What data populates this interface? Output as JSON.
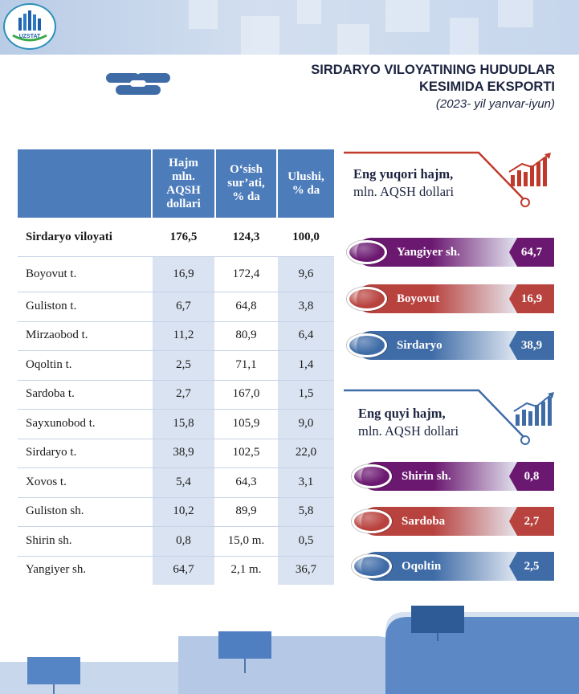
{
  "header": {
    "logo_text": "UZSTAT",
    "title_line1": "SIRDARYO VILOYATINING HUDUDLAR",
    "title_line2": "KESIMIDA EKSPORTI",
    "subtitle": "(2023- yil yanvar-iyun)"
  },
  "table": {
    "columns": [
      "",
      "Hajm mln. AQSH dollari",
      "O‘sish sur’ati, % da",
      "Ulushi, % da"
    ],
    "header_lines": {
      "volume": [
        "Hajm",
        "mln.",
        "AQSH",
        "dollari"
      ],
      "growth": [
        "O‘sish",
        "sur’ati,",
        "% da"
      ],
      "share": [
        "Ulushi,",
        "% da"
      ]
    },
    "total": {
      "name": "Sirdaryo viloyati",
      "volume": "176,5",
      "growth": "124,3",
      "share": "100,0"
    },
    "rows": [
      {
        "name": "Boyovut t.",
        "volume": "16,9",
        "growth": "172,4",
        "share": "9,6"
      },
      {
        "name": "Guliston t.",
        "volume": "6,7",
        "growth": "64,8",
        "share": "3,8"
      },
      {
        "name": "Mirzaobod t.",
        "volume": "11,2",
        "growth": "80,9",
        "share": "6,4"
      },
      {
        "name": "Oqoltin t.",
        "volume": "2,5",
        "growth": "71,1",
        "share": "1,4"
      },
      {
        "name": "Sardoba t.",
        "volume": "2,7",
        "growth": "167,0",
        "share": "1,5"
      },
      {
        "name": "Sayxunobod t.",
        "volume": "15,8",
        "growth": "105,9",
        "share": "9,0"
      },
      {
        "name": "Sirdaryo t.",
        "volume": "38,9",
        "growth": "102,5",
        "share": "22,0"
      },
      {
        "name": "Xovos t.",
        "volume": "5,4",
        "growth": "64,3",
        "share": "3,1"
      },
      {
        "name": "Guliston sh.",
        "volume": "10,2",
        "growth": "89,9",
        "share": "5,8"
      },
      {
        "name": "Shirin sh.",
        "volume": "0,8",
        "growth": "15,0 m.",
        "share": "0,5"
      },
      {
        "name": "Yangiyer sh.",
        "volume": "64,7",
        "growth": "2,1 m.",
        "share": "36,7"
      }
    ]
  },
  "highest": {
    "title_bold": "Eng yuqori hajm,",
    "title_rest": "mln. AQSH dollari",
    "items": [
      {
        "label": "Yangiyer sh.",
        "value": "64,7",
        "color": "#6b1870"
      },
      {
        "label": "Boyovut",
        "value": "16,9",
        "color": "#b8423e"
      },
      {
        "label": "Sirdaryo",
        "value": "38,9",
        "color": "#3f6ca7"
      }
    ]
  },
  "lowest": {
    "title_bold": "Eng quyi hajm,",
    "title_rest": "mln. AQSH dollari",
    "items": [
      {
        "label": "Shirin sh.",
        "value": "0,8",
        "color": "#6b1870"
      },
      {
        "label": "Sardoba",
        "value": "2,7",
        "color": "#b8423e"
      },
      {
        "label": "Oqoltin",
        "value": "2,5",
        "color": "#3f6ca7"
      }
    ]
  },
  "colors": {
    "header_blue": "#4d7cbb",
    "row_shade": "#dae3f1",
    "accent_red": "#c0392b",
    "footer_blue": "#4f7fc0"
  },
  "icons": [
    "logo-emblem",
    "chain-link-icon",
    "growth-chart-icon"
  ]
}
